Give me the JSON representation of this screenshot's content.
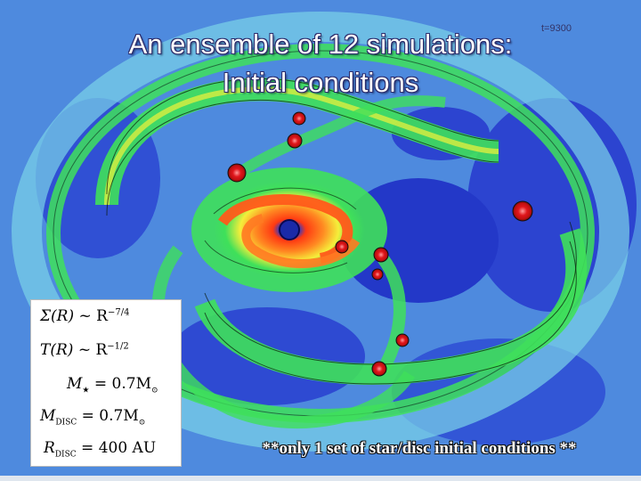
{
  "slide": {
    "title_line1": "An ensemble of 12 simulations:",
    "title_line2": "Initial conditions",
    "timestamp": "t=9300",
    "equations": {
      "sigma": {
        "lhs": "Σ(R)",
        "rhs": "~ R",
        "exp": "−7/4"
      },
      "temperature": {
        "lhs": "T(R)",
        "rhs": "~ R",
        "exp": "−1/2"
      },
      "star_mass": {
        "lhs": "M",
        "sub": "★",
        "rhs": "= 0.7M",
        "rhs_sub": "⊙"
      },
      "disc_mass": {
        "lhs": "M",
        "sub": "DISC",
        "rhs": "= 0.7M",
        "rhs_sub": "⊙"
      },
      "disc_radius": {
        "lhs": "R",
        "sub": "DISC",
        "rhs": "= 400 AU"
      }
    },
    "footnote": "**only 1 set of star/disc initial conditions **"
  },
  "colors": {
    "background": "#3f63d6",
    "field_light": "#5ab4e6",
    "arm_green": "#3fe05a",
    "arm_yellow": "#f2f23a",
    "core_orange": "#ff6b1f",
    "fragment_red": "#e0161c"
  }
}
